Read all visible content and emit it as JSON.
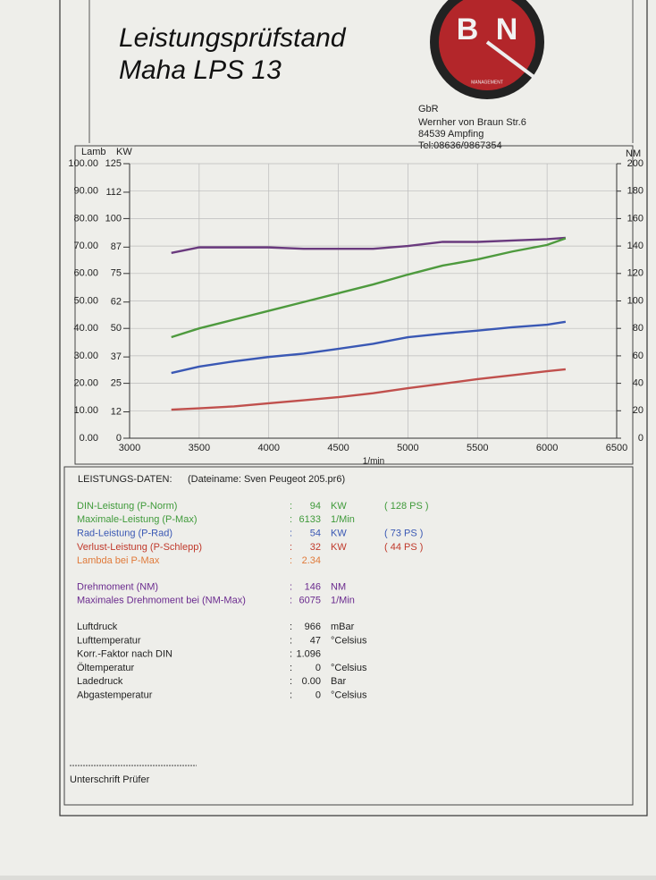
{
  "header": {
    "title_line1": "Leistungsprüfstand",
    "title_line2": "Maha LPS 13"
  },
  "logo": {
    "letters": [
      "B",
      "N"
    ],
    "caption": "MANAGEMENT"
  },
  "company": {
    "lines": [
      "GbR",
      "Wernher von Braun Str.6",
      "84539 Ampfing",
      "Tel:08636/9867354"
    ]
  },
  "chart_data": {
    "type": "line",
    "xlabel": "1/min",
    "ylabel": "KW",
    "y2label": "NM",
    "lambda_label": "Lamb",
    "x": [
      3300,
      3500,
      3750,
      4000,
      4250,
      4500,
      4750,
      5000,
      5250,
      5500,
      5750,
      6000,
      6133
    ],
    "series": [
      {
        "color": "#6a3a7e",
        "axis": "y2",
        "values": [
          135,
          139,
          139,
          139,
          138,
          138,
          138,
          140,
          143,
          143,
          144,
          145,
          146
        ]
      },
      {
        "color": "#4e9a3e",
        "values": [
          46,
          50,
          54,
          58,
          62,
          66,
          70,
          74.5,
          78.6,
          81.4,
          85,
          88,
          91
        ]
      },
      {
        "color": "#3a58b4",
        "values": [
          29.7,
          32.6,
          35,
          37,
          38.5,
          40.7,
          43,
          46,
          47.6,
          49,
          50.5,
          51.7,
          53
        ]
      },
      {
        "color": "#c0504d",
        "values": [
          13,
          13.6,
          14.5,
          15.9,
          17.3,
          18.7,
          20.5,
          22.8,
          24.8,
          26.9,
          28.7,
          30.5,
          31.4
        ]
      }
    ],
    "xlim": [
      3000,
      6500
    ],
    "xticks": [
      3000,
      3500,
      4000,
      4500,
      5000,
      5500,
      6000,
      6500
    ],
    "ylim": [
      0,
      125
    ],
    "yticks": [
      0,
      12,
      25,
      37,
      50,
      62,
      75,
      87,
      100,
      112,
      125
    ],
    "y2lim": [
      0,
      200
    ],
    "y2ticks": [
      0,
      20,
      40,
      60,
      80,
      100,
      120,
      140,
      160,
      180,
      200
    ],
    "lambda_lim": [
      0,
      100
    ],
    "lambda_ticks": [
      {
        "value": 0,
        "label": "0.00"
      },
      {
        "value": 10,
        "label": "10.00"
      },
      {
        "value": 20,
        "label": "20.00"
      },
      {
        "value": 30,
        "label": "30.00"
      },
      {
        "value": 40,
        "label": "40.00"
      },
      {
        "value": 50,
        "label": "50.00"
      },
      {
        "value": 60,
        "label": "60.00"
      },
      {
        "value": 70,
        "label": "70.00"
      },
      {
        "value": 80,
        "label": "80.00"
      },
      {
        "value": 90,
        "label": "90.00"
      },
      {
        "value": 100,
        "label": "100.00"
      }
    ],
    "grid": true
  },
  "results": {
    "heading": "LEISTUNGS-DATEN:",
    "file": "(Dateiname: Sven Peugeot 205.pr6)",
    "separator": ":",
    "groups": [
      [
        {
          "label": "DIN-Leistung (P-Norm)",
          "value": "94",
          "unit": "KW",
          "extra": "( 128 PS )",
          "color": "#3f9a3a"
        },
        {
          "label": "Maximale-Leistung (P-Max)",
          "value": "6133",
          "unit": "1/Min",
          "color": "#3f9a3a"
        },
        {
          "label": "Rad-Leistung (P-Rad)",
          "value": "54",
          "unit": "KW",
          "extra": "( 73 PS )",
          "color": "#3a58b4"
        },
        {
          "label": "Verlust-Leistung (P-Schlepp)",
          "value": "32",
          "unit": "KW",
          "extra": "( 44 PS )",
          "color": "#c0392b"
        },
        {
          "label": "Lambda bei P-Max",
          "value": "2.34",
          "color": "#e07a3a"
        }
      ],
      [
        {
          "label": "Drehmoment (NM)",
          "value": "146",
          "unit": "NM",
          "color": "#6a2a8e"
        },
        {
          "label": "Maximales Drehmoment bei (NM-Max)",
          "value": "6075",
          "unit": "1/Min",
          "color": "#6a2a8e"
        }
      ],
      [
        {
          "label": "Luftdruck",
          "value": "966",
          "unit": "mBar",
          "color": "#222"
        },
        {
          "label": "Lufttemperatur",
          "value": "47",
          "unit": "°Celsius",
          "color": "#222"
        },
        {
          "label": "Korr.-Faktor nach DIN",
          "value": "1.096",
          "color": "#222"
        },
        {
          "label": "Öltemperatur",
          "value": "0",
          "unit": "°Celsius",
          "color": "#222"
        },
        {
          "label": "Ladedruck",
          "value": "0.00",
          "unit": "Bar",
          "color": "#222"
        },
        {
          "label": "Abgastemperatur",
          "value": "0",
          "unit": "°Celsius",
          "color": "#222"
        }
      ]
    ]
  },
  "signature": {
    "label": "Unterschrift Prüfer"
  }
}
